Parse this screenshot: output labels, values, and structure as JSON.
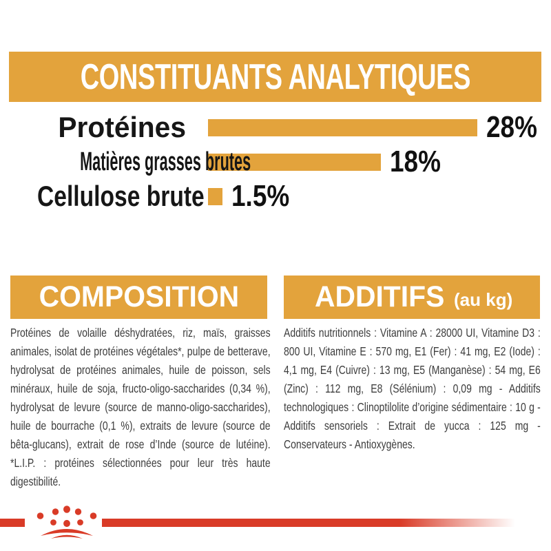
{
  "colors": {
    "accent_orange": "#E3A33C",
    "brand_red": "#D93B27",
    "heading_text_on_orange": "#FFFFFF",
    "chart_text": "#161616",
    "body_text": "#3C3C3C"
  },
  "header": {
    "title": "CONSTITUANTS ANALYTIQUES"
  },
  "chart_data": {
    "type": "bar",
    "orientation": "horizontal",
    "title": "CONSTITUANTS ANALYTIQUES",
    "categories": [
      "Protéines",
      "Matières grasses brutes",
      "Cellulose brute"
    ],
    "values": [
      28,
      18,
      1.5
    ],
    "value_labels": [
      "28%",
      "18%",
      "1.5%"
    ],
    "unit": "%",
    "xlim": [
      0,
      30
    ],
    "grid": false,
    "axis_visible": false,
    "bar_color": "#E3A33C",
    "value_label_position": "right-of-bar"
  },
  "sections": {
    "composition": {
      "title": "COMPOSITION",
      "body": "Protéines de volaille déshydratées, riz, maïs, graisses animales, isolat de protéines végétales*, pulpe de betterave, hydrolysat de protéines animales, huile de poisson, sels minéraux, huile de soja, fructo-oligo-saccharides (0,34 %), hydrolysat de levure (source de manno-oligo-saccharides), huile de bourrache (0,1 %), extraits de levure (source de bêta-glucans), extrait de rose d’Inde (source de lutéine). *L.I.P. : protéines sélectionnées pour leur très haute digestibilité."
    },
    "additifs": {
      "title": "ADDITIFS",
      "title_suffix": "(au kg)",
      "body": "Additifs nutritionnels : Vitamine A : 28000 UI, Vitamine D3 : 800 UI, Vitamine E : 570 mg, E1 (Fer) : 41 mg, E2 (Iode) : 4,1 mg, E4 (Cuivre) : 13 mg, E5 (Manganèse) : 54 mg, E6 (Zinc) : 112 mg, E8 (Sélénium) : 0,09 mg - Additifs technologiques : Clinoptilolite d’origine sédimentaire : 10 g - Additifs sensoriels : Extrait de yucca : 125 mg - Conservateurs - Antioxygènes."
    }
  },
  "footer": {
    "icon": "paw-crown-icon"
  }
}
